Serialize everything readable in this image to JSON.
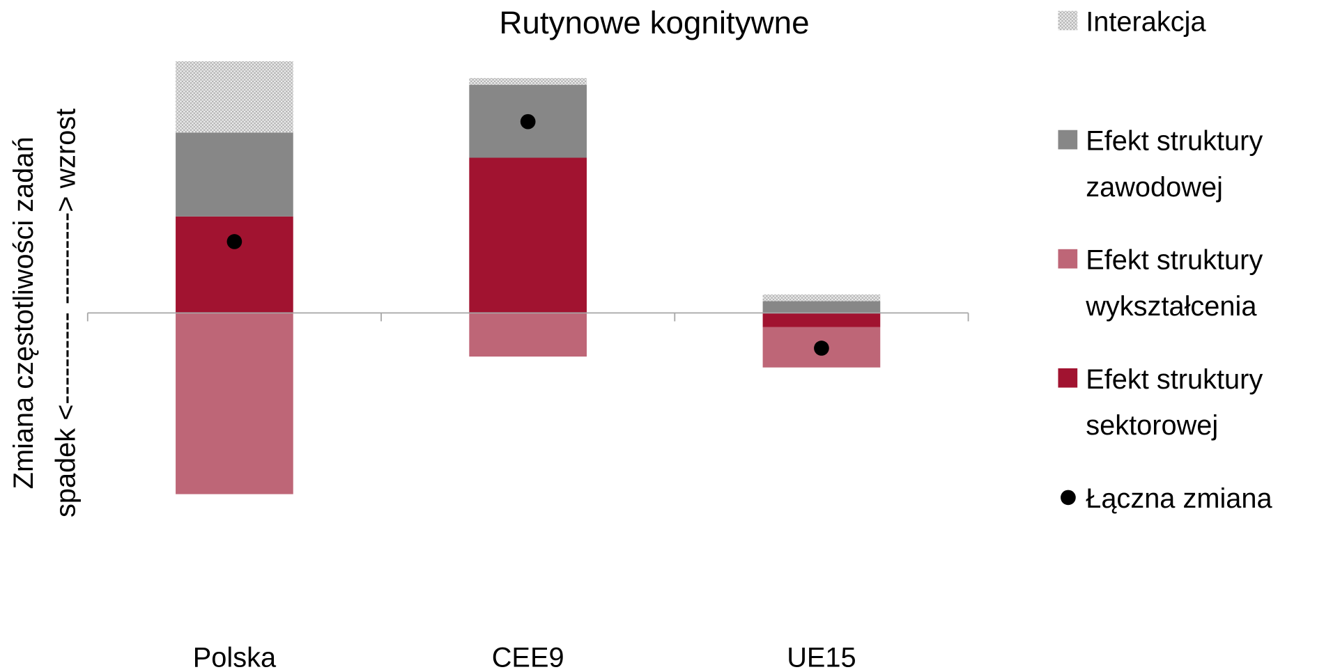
{
  "chart_data": {
    "type": "stacked_bar",
    "title": "Rutynowe kognitywne",
    "y_label": [
      "Zmiana  częstotliwości  zadań",
      "spadek <---------- ----------> wzrost"
    ],
    "categories": [
      "Polska",
      "CEE9",
      "UE15"
    ],
    "series": [
      {
        "name": "Efekt struktury sektorowej",
        "color": "#a11330",
        "values": [
          1.15,
          1.85,
          -0.17
        ]
      },
      {
        "name": "Efekt struktury wykształcenia",
        "color": "#be6677",
        "values": [
          -2.16,
          -0.52,
          -0.48
        ]
      },
      {
        "name": "Efekt struktury zawodowej",
        "color": "#878787",
        "values": [
          1.0,
          0.87,
          0.14
        ]
      },
      {
        "name": "Interakcja",
        "color": "#cfcfcf",
        "pattern": "checker",
        "values": [
          0.85,
          0.08,
          0.08
        ]
      }
    ],
    "total": {
      "name": "Łączna zmiana",
      "color": "#000000",
      "values": [
        0.85,
        2.28,
        -0.42
      ]
    },
    "ylim": [
      -4,
      3.2
    ],
    "legend": "right"
  }
}
